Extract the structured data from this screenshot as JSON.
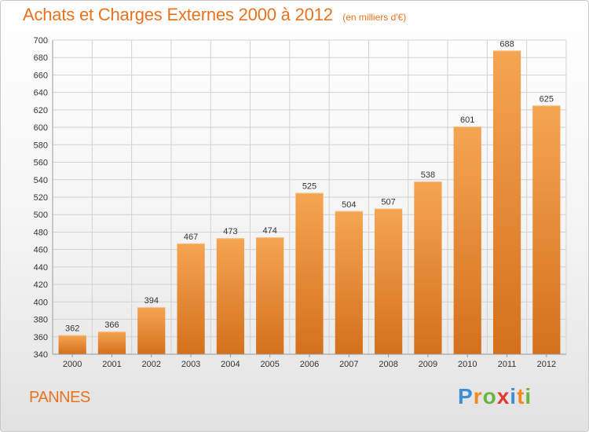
{
  "title": "Achats et Charges Externes 2000 à 2012",
  "unit": "(en milliers d'€)",
  "commune": "PANNES",
  "brand": {
    "letters": [
      "P",
      "r",
      "o",
      "x",
      "i",
      "t",
      "i"
    ],
    "colors": [
      "#3b8fd6",
      "#f08a1f",
      "#69b43a",
      "#e03a2f",
      "#3b8fd6",
      "#f08a1f",
      "#69b43a"
    ]
  },
  "colors": {
    "accent": "#e8731e",
    "bar_light": "#f5a552",
    "bar_dark": "#d4701c",
    "grid": "#d2d2d2",
    "text": "#333333"
  },
  "chart_data": {
    "type": "bar",
    "categories": [
      "2000",
      "2001",
      "2002",
      "2003",
      "2004",
      "2005",
      "2006",
      "2007",
      "2008",
      "2009",
      "2010",
      "2011",
      "2012"
    ],
    "values": [
      362,
      366,
      394,
      467,
      473,
      474,
      525,
      504,
      507,
      538,
      601,
      688,
      625
    ],
    "ylim": [
      340,
      700
    ],
    "yticks": [
      340,
      360,
      380,
      400,
      420,
      440,
      460,
      480,
      500,
      520,
      540,
      560,
      580,
      600,
      620,
      640,
      660,
      680,
      700
    ],
    "grid": true,
    "data_labels": true
  }
}
